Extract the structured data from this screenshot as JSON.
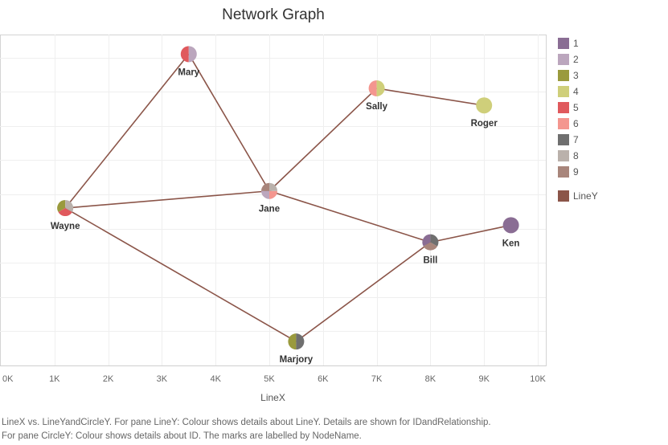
{
  "chart_data": {
    "type": "network",
    "title": "Network Graph",
    "xlabel": "LineX",
    "ylabel": "",
    "xlim": [
      0,
      10
    ],
    "ylim": [
      0,
      10
    ],
    "x_ticks": [
      {
        "value": 0,
        "label": "0K"
      },
      {
        "value": 1,
        "label": "1K"
      },
      {
        "value": 2,
        "label": "2K"
      },
      {
        "value": 3,
        "label": "3K"
      },
      {
        "value": 4,
        "label": "4K"
      },
      {
        "value": 5,
        "label": "5K"
      },
      {
        "value": 6,
        "label": "6K"
      },
      {
        "value": 7,
        "label": "7K"
      },
      {
        "value": 8,
        "label": "8K"
      },
      {
        "value": 9,
        "label": "9K"
      },
      {
        "value": 10,
        "label": "10K"
      }
    ],
    "nodes": [
      {
        "name": "Mary",
        "x": 3.5,
        "y": 9.1,
        "colors": [
          "5",
          "2"
        ]
      },
      {
        "name": "Sally",
        "x": 7.0,
        "y": 8.1,
        "colors": [
          "6",
          "4"
        ]
      },
      {
        "name": "Roger",
        "x": 9.0,
        "y": 7.6,
        "colors": [
          "4"
        ]
      },
      {
        "name": "Jane",
        "x": 5.0,
        "y": 5.1,
        "colors": [
          "9",
          "2",
          "6",
          "8"
        ]
      },
      {
        "name": "Wayne",
        "x": 1.2,
        "y": 4.6,
        "colors": [
          "3",
          "5",
          "8"
        ]
      },
      {
        "name": "Ken",
        "x": 9.5,
        "y": 4.1,
        "colors": [
          "1"
        ]
      },
      {
        "name": "Bill",
        "x": 8.0,
        "y": 3.6,
        "colors": [
          "1",
          "9",
          "7"
        ]
      },
      {
        "name": "Marjory",
        "x": 5.5,
        "y": 0.7,
        "colors": [
          "3",
          "7"
        ]
      }
    ],
    "edges": [
      [
        "Wayne",
        "Mary"
      ],
      [
        "Mary",
        "Jane"
      ],
      [
        "Wayne",
        "Jane"
      ],
      [
        "Jane",
        "Sally"
      ],
      [
        "Sally",
        "Roger"
      ],
      [
        "Jane",
        "Bill"
      ],
      [
        "Bill",
        "Ken"
      ],
      [
        "Wayne",
        "Marjory"
      ],
      [
        "Marjory",
        "Bill"
      ]
    ],
    "legend": [
      {
        "label": "1",
        "color": "#8a6d94"
      },
      {
        "label": "2",
        "color": "#bba6bd"
      },
      {
        "label": "3",
        "color": "#9a9a3d"
      },
      {
        "label": "4",
        "color": "#cfcf7a"
      },
      {
        "label": "5",
        "color": "#e0595d"
      },
      {
        "label": "6",
        "color": "#f4968f"
      },
      {
        "label": "7",
        "color": "#6f6f6f"
      },
      {
        "label": "8",
        "color": "#bab1ab"
      },
      {
        "label": "9",
        "color": "#a8857b"
      },
      {
        "label": "LineY",
        "color": "#8b5549"
      }
    ],
    "edge_color": "#8b5549"
  },
  "caption": {
    "line1": "LineX vs. LineYandCircleY. For pane LineY: Colour shows details about LineY. Details are shown for IDandRelationship.",
    "line2": "For pane CircleY: Colour shows details about ID. The marks are labelled by NodeName."
  }
}
